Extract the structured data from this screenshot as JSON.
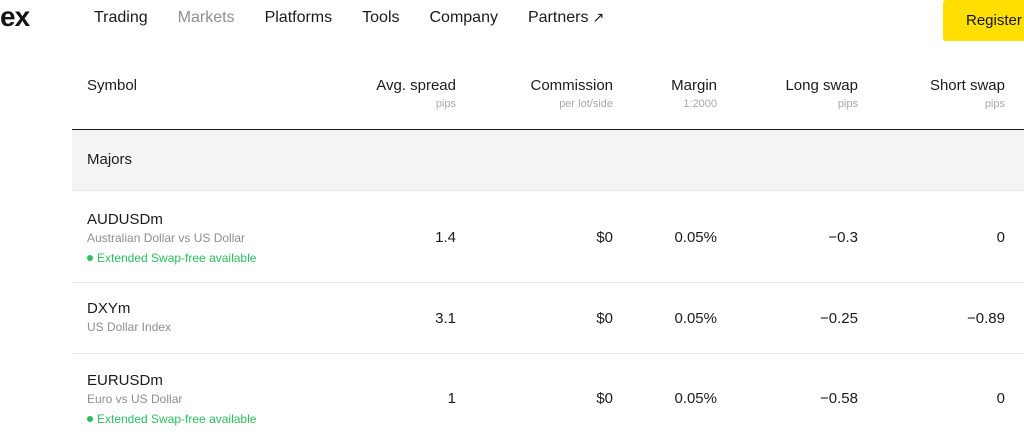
{
  "header": {
    "logo": "ex",
    "nav": [
      {
        "label": "Trading"
      },
      {
        "label": "Markets"
      },
      {
        "label": "Platforms"
      },
      {
        "label": "Tools"
      },
      {
        "label": "Company"
      },
      {
        "label": "Partners"
      }
    ],
    "partners_arrow": "↗",
    "register_label": "Register"
  },
  "table": {
    "columns": [
      {
        "label": "Symbol",
        "sub": ""
      },
      {
        "label": "Avg. spread",
        "sub": "pips"
      },
      {
        "label": "Commission",
        "sub": "per lot/side"
      },
      {
        "label": "Margin",
        "sub": "1:2000"
      },
      {
        "label": "Long swap",
        "sub": "pips"
      },
      {
        "label": "Short swap",
        "sub": "pips"
      }
    ],
    "group": "Majors",
    "rows": [
      {
        "symbol": "AUDUSDm",
        "description": "Australian Dollar vs US Dollar",
        "badge": "Extended Swap-free available",
        "spread": "1.4",
        "commission": "$0",
        "margin": "0.05%",
        "long_swap": "−0.3",
        "short_swap": "0"
      },
      {
        "symbol": "DXYm",
        "description": "US Dollar Index",
        "badge": "",
        "spread": "3.1",
        "commission": "$0",
        "margin": "0.05%",
        "long_swap": "−0.25",
        "short_swap": "−0.89"
      },
      {
        "symbol": "EURUSDm",
        "description": "Euro vs US Dollar",
        "badge": "Extended Swap-free available",
        "spread": "1",
        "commission": "$0",
        "margin": "0.05%",
        "long_swap": "−0.58",
        "short_swap": "0"
      }
    ]
  },
  "colors": {
    "accent": "#ffde02",
    "swapfree": "#2bbf5e",
    "muted": "#8a8f98"
  }
}
